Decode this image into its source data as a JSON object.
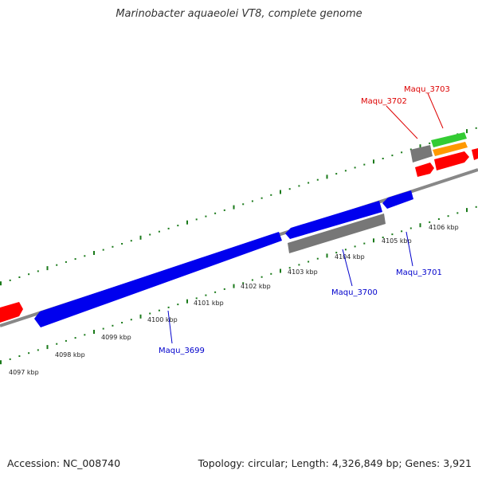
{
  "title": "Marinobacter aquaeolei VT8, complete genome",
  "footer": {
    "accession": "Accession: NC_008740",
    "stats": "Topology: circular; Length: 4,326,849 bp; Genes: 3,921"
  },
  "colors": {
    "forward_cds": "#0000ee",
    "reverse_cds": "#ff0000",
    "pseudogene": "#777777",
    "rna_green": "#33cc33",
    "rna_orange": "#ff9900",
    "backbone": "#888888",
    "ruler": "#1a7a1a",
    "forward_label": "#0000cc",
    "reverse_label": "#dd0000"
  },
  "ruler_ticks": [
    {
      "kbp": 4097,
      "label": "4097 kbp"
    },
    {
      "kbp": 4098,
      "label": "4098 kbp"
    },
    {
      "kbp": 4099,
      "label": "4099 kbp"
    },
    {
      "kbp": 4100,
      "label": "4100 kbp"
    },
    {
      "kbp": 4101,
      "label": "4101 kbp"
    },
    {
      "kbp": 4102,
      "label": "4102 kbp"
    },
    {
      "kbp": 4103,
      "label": "4103 kbp"
    },
    {
      "kbp": 4104,
      "label": "4104 kbp"
    },
    {
      "kbp": 4105,
      "label": "4105 kbp"
    },
    {
      "kbp": 4106,
      "label": "4106 kbp"
    }
  ],
  "gene_labels": [
    {
      "name": "Maqu_3699",
      "strand": "forward"
    },
    {
      "name": "Maqu_3700",
      "strand": "forward"
    },
    {
      "name": "Maqu_3701",
      "strand": "forward"
    },
    {
      "name": "Maqu_3702",
      "strand": "reverse"
    },
    {
      "name": "Maqu_3703",
      "strand": "reverse"
    }
  ]
}
